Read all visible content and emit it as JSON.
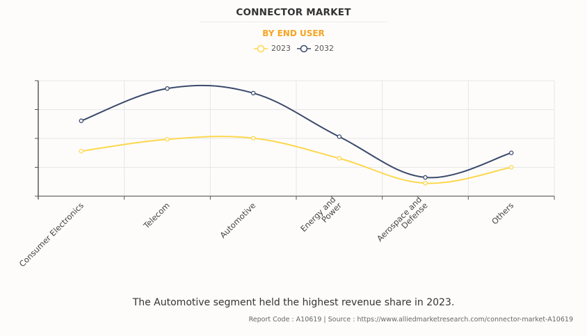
{
  "chart_data": {
    "type": "line",
    "title": "CONNECTOR MARKET",
    "subtitle": "BY END USER",
    "xlabel": "",
    "ylabel": "",
    "categories": [
      "Consumer Electronics",
      "Telecom",
      "Automotive",
      "Energy and Power",
      "Aerospace and Defense",
      "Others"
    ],
    "category_lines": [
      [
        "Consumer Electronics"
      ],
      [
        "Telecom"
      ],
      [
        "Automotive"
      ],
      [
        "Energy and",
        "Power"
      ],
      [
        "Aerospace and",
        "Defense"
      ],
      [
        "Others"
      ]
    ],
    "series": [
      {
        "name": "2023",
        "color": "#fdd74d",
        "values": [
          1.56,
          1.97,
          2.01,
          1.31,
          0.45,
          1.0
        ]
      },
      {
        "name": "2032",
        "color": "#3b4a6b",
        "values": [
          2.61,
          3.73,
          3.57,
          2.06,
          0.65,
          1.5
        ]
      }
    ],
    "ylim": [
      0,
      4
    ],
    "y_ticks": [
      0,
      1,
      2,
      3,
      4
    ],
    "y_tick_labels_visible": false,
    "grid": true,
    "smooth": true,
    "legend_position": "top-center"
  },
  "insight": "The Automotive segment held the highest revenue share in 2023.",
  "footer": "Report Code : A10619  |  Source : https://www.alliedmarketresearch.com/connector-market-A10619"
}
